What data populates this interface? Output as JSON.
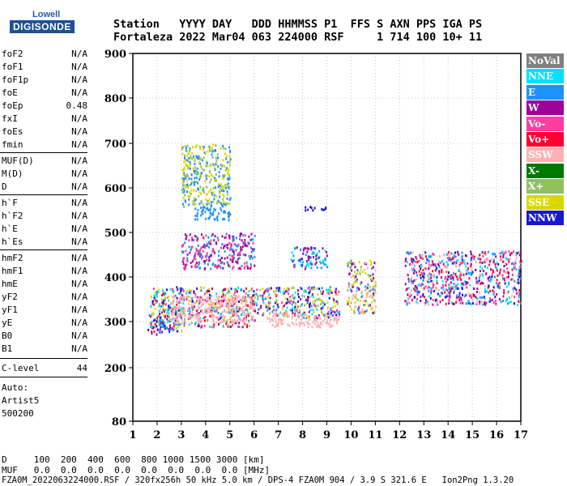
{
  "logo": {
    "line1": "Lowell",
    "line2": "DIGISONDE"
  },
  "header": {
    "line1": "Station   YYYY DAY   DDD HHMMSS P1  FFS S AXN PPS IGA PS",
    "line2": "Fortaleza 2022 Mar04 063 224000 RSF     1 714 100 10+ 11"
  },
  "params": {
    "group1": [
      {
        "k": "foF2",
        "v": "N/A"
      },
      {
        "k": "foF1",
        "v": "N/A"
      },
      {
        "k": "foF1p",
        "v": "N/A"
      },
      {
        "k": "foE",
        "v": "N/A"
      },
      {
        "k": "foEp",
        "v": "0.48"
      },
      {
        "k": "fxI",
        "v": "N/A"
      },
      {
        "k": "foEs",
        "v": "N/A"
      },
      {
        "k": "fmin",
        "v": "N/A"
      }
    ],
    "group2": [
      {
        "k": "MUF(D)",
        "v": "N/A"
      },
      {
        "k": "M(D)",
        "v": "N/A"
      },
      {
        "k": "D",
        "v": "N/A"
      }
    ],
    "group3": [
      {
        "k": "h`F",
        "v": "N/A"
      },
      {
        "k": "h`F2",
        "v": "N/A"
      },
      {
        "k": "h`E",
        "v": "N/A"
      },
      {
        "k": "h`Es",
        "v": "N/A"
      }
    ],
    "group4": [
      {
        "k": "hmF2",
        "v": "N/A"
      },
      {
        "k": "hmF1",
        "v": "N/A"
      },
      {
        "k": "hmE",
        "v": "N/A"
      },
      {
        "k": "yF2",
        "v": "N/A"
      },
      {
        "k": "yF1",
        "v": "N/A"
      },
      {
        "k": "yE",
        "v": "N/A"
      },
      {
        "k": "B0",
        "v": "N/A"
      },
      {
        "k": "B1",
        "v": "N/A"
      }
    ],
    "clevel": {
      "k": "C-level",
      "v": "44"
    },
    "auto": [
      "Auto:",
      "Artist5",
      "500200"
    ]
  },
  "bottom": {
    "line1": "D     100  200  400  600  800 1000 1500 3000 [km]",
    "line2": "MUF   0.0  0.0  0.0  0.0  0.0  0.0  0.0  0.0 [MHz]",
    "line3": "FZA0M_2022063224000.RSF / 320fx256h 50 kHz 5.0 km / DPS-4 FZA0M 904 / 3.9 S 321.6 E   Ion2Png 1.3.20"
  },
  "chart_data": {
    "type": "scatter",
    "title": "",
    "xlabel": "",
    "ylabel": "",
    "xlim": [
      1,
      17
    ],
    "ylim": [
      80,
      900
    ],
    "x_ticks": [
      1,
      2,
      3,
      4,
      5,
      6,
      7,
      8,
      9,
      10,
      11,
      12,
      13,
      14,
      15,
      16,
      17
    ],
    "y_ticks": [
      80,
      200,
      300,
      400,
      500,
      600,
      700,
      800,
      900
    ],
    "legend_placement": "right",
    "series": [
      {
        "name": "NoVal",
        "color": "#808080"
      },
      {
        "name": "NNE",
        "color": "#00e0ff"
      },
      {
        "name": "E",
        "color": "#1e90ff"
      },
      {
        "name": "W",
        "color": "#a0009a"
      },
      {
        "name": "Vo-",
        "color": "#ff3ca0"
      },
      {
        "name": "Vo+",
        "color": "#ff0030"
      },
      {
        "name": "SSW",
        "color": "#ffb0b0"
      },
      {
        "name": "X-",
        "color": "#007800"
      },
      {
        "name": "X+",
        "color": "#90c060"
      },
      {
        "name": "SSE",
        "color": "#d8d800"
      },
      {
        "name": "NNW",
        "color": "#1818d0"
      }
    ],
    "echo_regions": [
      {
        "x": [
          1.6,
          2.2
        ],
        "y": [
          270,
          320
        ],
        "series": [
          "E",
          "NNW",
          "W",
          "Vo+"
        ]
      },
      {
        "x": [
          2.2,
          3.0
        ],
        "y": [
          280,
          340
        ],
        "series": [
          "E",
          "NNE",
          "SSE",
          "NNW",
          "W"
        ]
      },
      {
        "x": [
          1.7,
          6.0
        ],
        "y": [
          290,
          380
        ],
        "series": [
          "E",
          "NNE",
          "SSE",
          "X+",
          "Vo-",
          "W",
          "NNW",
          "Vo+"
        ]
      },
      {
        "x": [
          2.5,
          6.0
        ],
        "y": [
          300,
          360
        ],
        "series": [
          "SSW"
        ]
      },
      {
        "x": [
          6.0,
          9.5
        ],
        "y": [
          310,
          380
        ],
        "series": [
          "SSE",
          "E",
          "NNE",
          "NNW",
          "W",
          "Vo-",
          "X+"
        ]
      },
      {
        "x": [
          6.5,
          9.5
        ],
        "y": [
          290,
          320
        ],
        "series": [
          "SSW"
        ]
      },
      {
        "x": [
          3.0,
          6.0
        ],
        "y": [
          420,
          500
        ],
        "series": [
          "W",
          "Vo-",
          "E"
        ]
      },
      {
        "x": [
          3.5,
          5.0
        ],
        "y": [
          530,
          560
        ],
        "series": [
          "E"
        ]
      },
      {
        "x": [
          3.0,
          5.0
        ],
        "y": [
          560,
          700
        ],
        "series": [
          "SSE",
          "X+",
          "E"
        ]
      },
      {
        "x": [
          7.5,
          9.0
        ],
        "y": [
          420,
          470
        ],
        "series": [
          "E",
          "NNE",
          "W"
        ]
      },
      {
        "x": [
          8.0,
          9.0
        ],
        "y": [
          550,
          560
        ],
        "series": [
          "NNW"
        ]
      },
      {
        "x": [
          9.8,
          11.0
        ],
        "y": [
          320,
          440
        ],
        "series": [
          "SSE",
          "X+",
          "E",
          "W",
          "SSW"
        ]
      },
      {
        "x": [
          12.2,
          17.0
        ],
        "y": [
          340,
          460
        ],
        "series": [
          "NNW",
          "E",
          "NNE",
          "W",
          "Vo-",
          "Vo+",
          "SSW"
        ]
      }
    ]
  }
}
